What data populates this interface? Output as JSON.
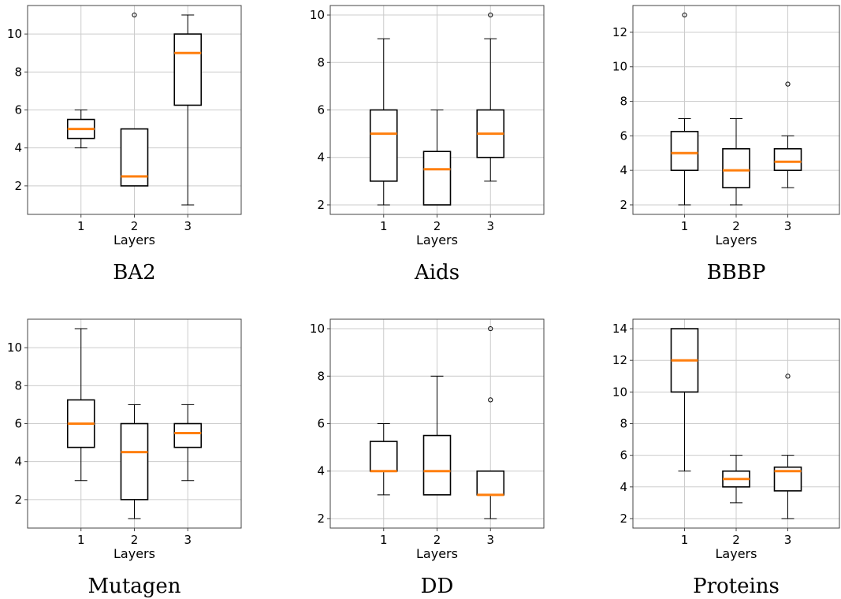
{
  "chart_data": [
    {
      "type": "box",
      "title": "BA2",
      "xlabel": "Layers",
      "ylabel": "",
      "categories": [
        "1",
        "2",
        "3"
      ],
      "ylim": [
        0.5,
        11.5
      ],
      "yticks": [
        2,
        4,
        6,
        8,
        10
      ],
      "grid": true,
      "boxes": [
        {
          "q1": 4.5,
          "median": 5,
          "q3": 5.5,
          "whisker_low": 4,
          "whisker_high": 6,
          "outliers": []
        },
        {
          "q1": 2,
          "median": 2.5,
          "q3": 5,
          "whisker_low": 2,
          "whisker_high": 5,
          "outliers": [
            11
          ]
        },
        {
          "q1": 6.25,
          "median": 9,
          "q3": 10,
          "whisker_low": 1,
          "whisker_high": 11,
          "outliers": []
        }
      ]
    },
    {
      "type": "box",
      "title": "Aids",
      "xlabel": "Layers",
      "ylabel": "",
      "categories": [
        "1",
        "2",
        "3"
      ],
      "ylim": [
        1.6,
        10.4
      ],
      "yticks": [
        2,
        4,
        6,
        8,
        10
      ],
      "grid": true,
      "boxes": [
        {
          "q1": 3,
          "median": 5,
          "q3": 6,
          "whisker_low": 2,
          "whisker_high": 9,
          "outliers": []
        },
        {
          "q1": 2,
          "median": 3.5,
          "q3": 4.25,
          "whisker_low": 2,
          "whisker_high": 6,
          "outliers": []
        },
        {
          "q1": 4,
          "median": 5,
          "q3": 6,
          "whisker_low": 3,
          "whisker_high": 9,
          "outliers": [
            10
          ]
        }
      ]
    },
    {
      "type": "box",
      "title": "BBBP",
      "xlabel": "Layers",
      "ylabel": "",
      "categories": [
        "1",
        "2",
        "3"
      ],
      "ylim": [
        1.45,
        13.55
      ],
      "yticks": [
        2,
        4,
        6,
        8,
        10,
        12
      ],
      "grid": true,
      "boxes": [
        {
          "q1": 4,
          "median": 5,
          "q3": 6.25,
          "whisker_low": 2,
          "whisker_high": 7,
          "outliers": [
            13
          ]
        },
        {
          "q1": 3,
          "median": 4,
          "q3": 5.25,
          "whisker_low": 2,
          "whisker_high": 7,
          "outliers": []
        },
        {
          "q1": 4,
          "median": 4.5,
          "q3": 5.25,
          "whisker_low": 3,
          "whisker_high": 6,
          "outliers": [
            9
          ]
        }
      ]
    },
    {
      "type": "box",
      "title": "Mutagen",
      "xlabel": "Layers",
      "ylabel": "",
      "categories": [
        "1",
        "2",
        "3"
      ],
      "ylim": [
        0.5,
        11.5
      ],
      "yticks": [
        2,
        4,
        6,
        8,
        10
      ],
      "grid": true,
      "boxes": [
        {
          "q1": 4.75,
          "median": 6,
          "q3": 7.25,
          "whisker_low": 3,
          "whisker_high": 11,
          "outliers": []
        },
        {
          "q1": 2,
          "median": 4.5,
          "q3": 6,
          "whisker_low": 1,
          "whisker_high": 7,
          "outliers": []
        },
        {
          "q1": 4.75,
          "median": 5.5,
          "q3": 6,
          "whisker_low": 3,
          "whisker_high": 7,
          "outliers": []
        }
      ]
    },
    {
      "type": "box",
      "title": "DD",
      "xlabel": "Layers",
      "ylabel": "",
      "categories": [
        "1",
        "2",
        "3"
      ],
      "ylim": [
        1.6,
        10.4
      ],
      "yticks": [
        2,
        4,
        6,
        8,
        10
      ],
      "grid": true,
      "boxes": [
        {
          "q1": 4,
          "median": 4,
          "q3": 5.25,
          "whisker_low": 3,
          "whisker_high": 6,
          "outliers": []
        },
        {
          "q1": 3,
          "median": 4,
          "q3": 5.5,
          "whisker_low": 3,
          "whisker_high": 8,
          "outliers": []
        },
        {
          "q1": 3,
          "median": 3,
          "q3": 4,
          "whisker_low": 2,
          "whisker_high": 4,
          "outliers": [
            7,
            10
          ]
        }
      ]
    },
    {
      "type": "box",
      "title": "Proteins",
      "xlabel": "Layers",
      "ylabel": "",
      "categories": [
        "1",
        "2",
        "3"
      ],
      "ylim": [
        1.4,
        14.6
      ],
      "yticks": [
        2,
        4,
        6,
        8,
        10,
        12,
        14
      ],
      "grid": true,
      "boxes": [
        {
          "q1": 10,
          "median": 12,
          "q3": 14,
          "whisker_low": 5,
          "whisker_high": 14,
          "outliers": []
        },
        {
          "q1": 4,
          "median": 4.5,
          "q3": 5,
          "whisker_low": 3,
          "whisker_high": 6,
          "outliers": []
        },
        {
          "q1": 3.75,
          "median": 5,
          "q3": 5.25,
          "whisker_low": 2,
          "whisker_high": 6,
          "outliers": [
            11
          ]
        }
      ]
    }
  ],
  "colors": {
    "median": "#ff7f0e",
    "box": "#000000",
    "grid": "#cccccc",
    "axes": "#444444"
  }
}
